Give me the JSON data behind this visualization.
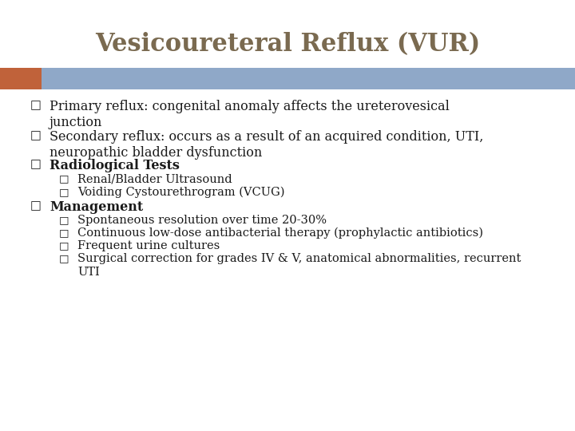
{
  "title": "Vesicoureteral Reflux (VUR)",
  "title_color": "#7a6a50",
  "title_fontsize": 22,
  "title_font": "serif",
  "bg_color": "#ffffff",
  "header_bar_color": "#8fa8c8",
  "header_bar_accent": "#c0623a",
  "bullet_color": "#1a1a1a",
  "bullet_fontsize": 11.5,
  "sub_bullet_fontsize": 10.5,
  "bullet_font": "serif",
  "bullet_square": "□",
  "items": [
    {
      "level": 1,
      "text": "Primary reflux: congenital anomaly affects the ureterovesical\njunction",
      "bold": false,
      "extra_lines": 1
    },
    {
      "level": 1,
      "text": "Secondary reflux: occurs as a result of an acquired condition, UTI,\nneuropathic bladder dysfunction",
      "bold": false,
      "extra_lines": 1
    },
    {
      "level": 1,
      "text": "Radiological Tests",
      "bold": true,
      "extra_lines": 0
    },
    {
      "level": 2,
      "text": "Renal/Bladder Ultrasound",
      "bold": false,
      "extra_lines": 0
    },
    {
      "level": 2,
      "text": "Voiding Cystourethrogram (VCUG)",
      "bold": false,
      "extra_lines": 0
    },
    {
      "level": 1,
      "text": "Management",
      "bold": true,
      "extra_lines": 0
    },
    {
      "level": 2,
      "text": "Spontaneous resolution over time 20-30%",
      "bold": false,
      "extra_lines": 0
    },
    {
      "level": 2,
      "text": "Continuous low-dose antibacterial therapy (prophylactic antibiotics)",
      "bold": false,
      "extra_lines": 0
    },
    {
      "level": 2,
      "text": "Frequent urine cultures",
      "bold": false,
      "extra_lines": 0
    },
    {
      "level": 2,
      "text": "Surgical correction for grades IV & V, anatomical abnormalities, recurrent\nUTI",
      "bold": false,
      "extra_lines": 1
    }
  ]
}
